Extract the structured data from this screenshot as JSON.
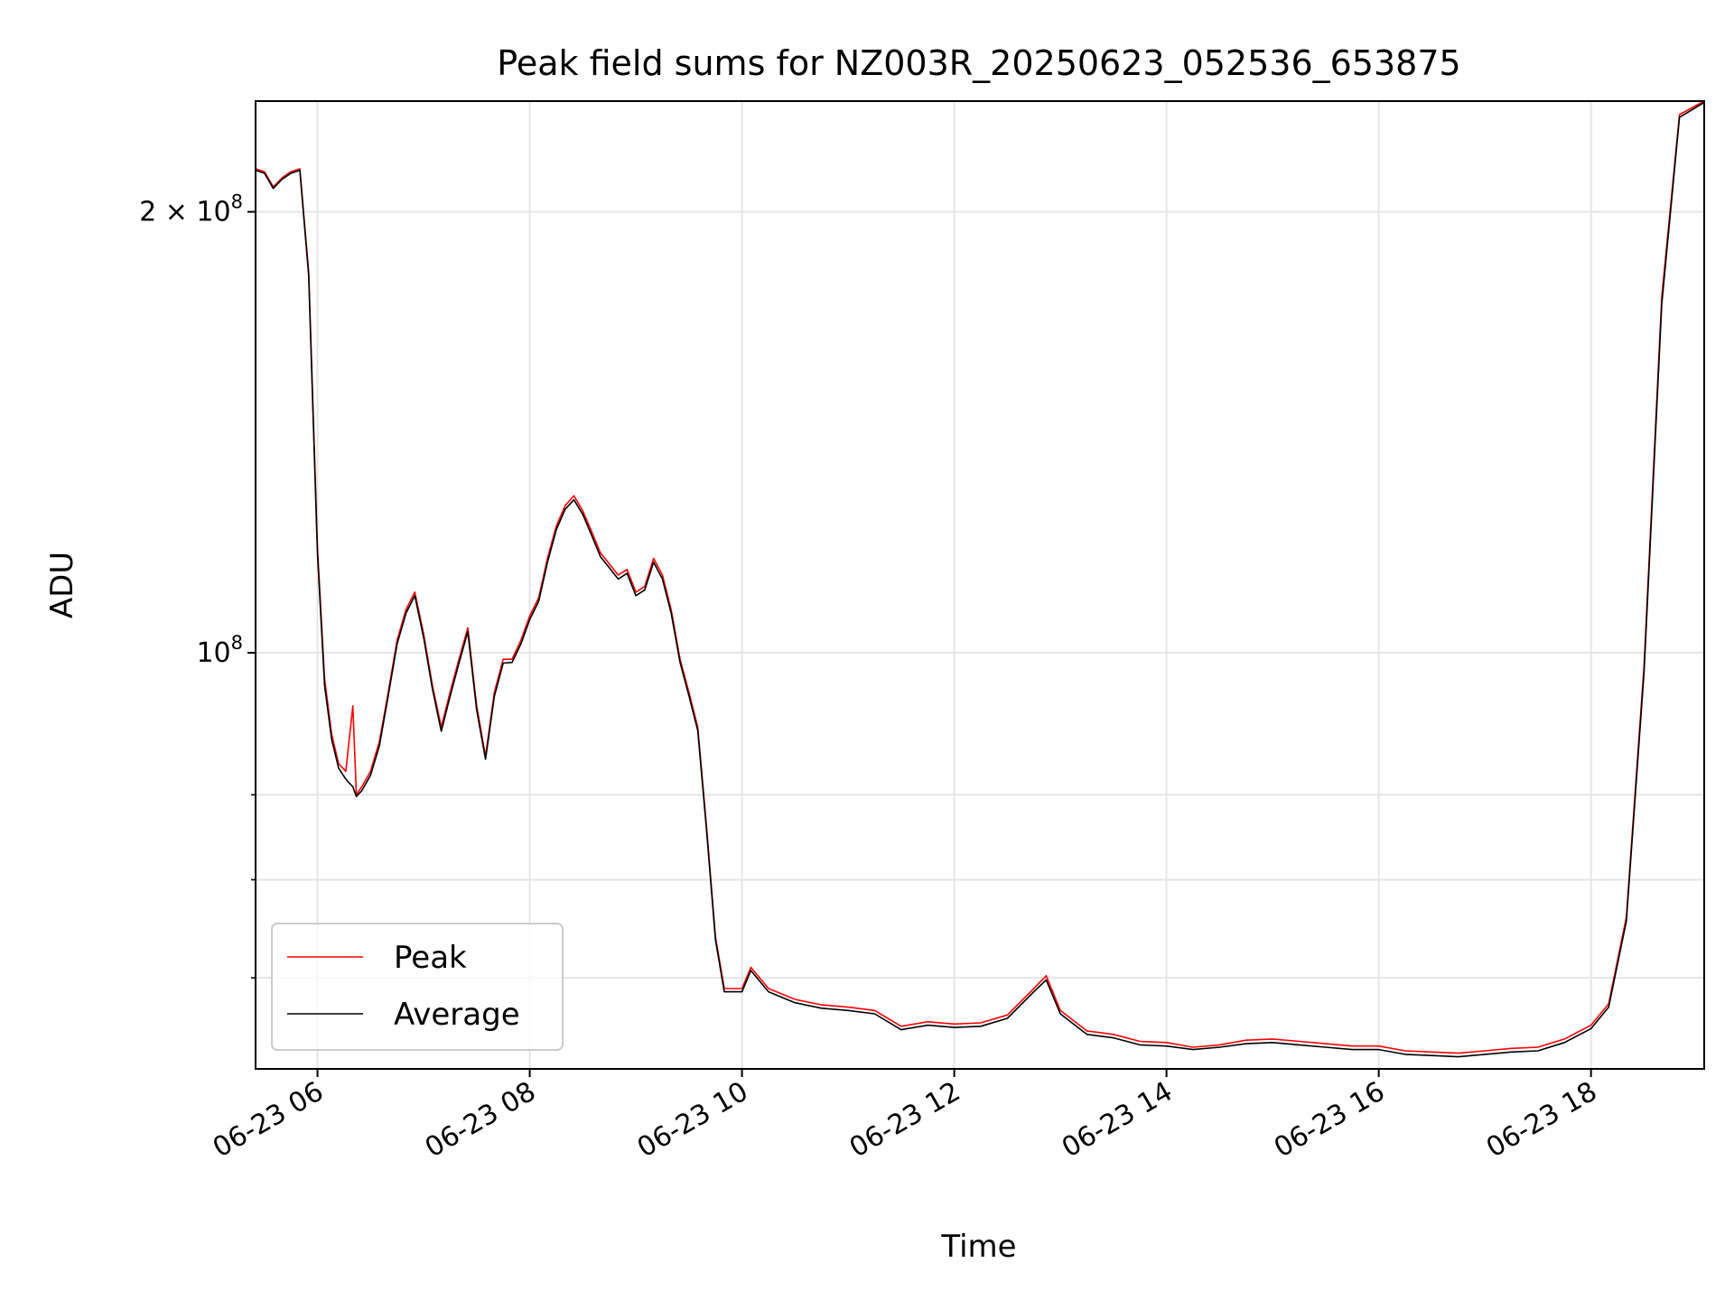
{
  "chart_data": {
    "type": "line",
    "title": "Peak field sums for NZ003R_20250623_052536_653875",
    "xlabel": "Time",
    "ylabel": "ADU",
    "x_ticks": [
      {
        "time": "2025-06-23T06:00",
        "label": "06-23 06"
      },
      {
        "time": "2025-06-23T08:00",
        "label": "06-23 08"
      },
      {
        "time": "2025-06-23T10:00",
        "label": "06-23 10"
      },
      {
        "time": "2025-06-23T12:00",
        "label": "06-23 12"
      },
      {
        "time": "2025-06-23T14:00",
        "label": "06-23 14"
      },
      {
        "time": "2025-06-23T16:00",
        "label": "06-23 16"
      },
      {
        "time": "2025-06-23T18:00",
        "label": "06-23 18"
      }
    ],
    "y_scale": "log",
    "y_ticks": [
      {
        "value": 200000000,
        "base": "2 × 10",
        "exp": "8"
      },
      {
        "value": 100000000,
        "base": "10",
        "exp": "8"
      }
    ],
    "xlim": [
      "2025-06-23T05:25",
      "2025-06-23T19:04"
    ],
    "ylim": [
      52000000,
      238000000
    ],
    "grid": true,
    "legend_position": "lower-left",
    "colors": {
      "peak": "#ff0000",
      "average": "#000000",
      "grid": "#e5e5e5"
    },
    "series": [
      {
        "name": "Peak",
        "color": "#ff0000",
        "points": [
          [
            "2025-06-23T05:25",
            214000000
          ],
          [
            "2025-06-23T05:30",
            213000000
          ],
          [
            "2025-06-23T05:35",
            208000000
          ],
          [
            "2025-06-23T05:40",
            211000000
          ],
          [
            "2025-06-23T05:45",
            213000000
          ],
          [
            "2025-06-23T05:50",
            214000000
          ],
          [
            "2025-06-23T05:55",
            182000000
          ],
          [
            "2025-06-23T06:00",
            118000000
          ],
          [
            "2025-06-23T06:04",
            96000000
          ],
          [
            "2025-06-23T06:08",
            88000000
          ],
          [
            "2025-06-23T06:12",
            84000000
          ],
          [
            "2025-06-23T06:16",
            83000000
          ],
          [
            "2025-06-23T06:20",
            92000000
          ],
          [
            "2025-06-23T06:22",
            80000000
          ],
          [
            "2025-06-23T06:25",
            81000000
          ],
          [
            "2025-06-23T06:30",
            83000000
          ],
          [
            "2025-06-23T06:35",
            87000000
          ],
          [
            "2025-06-23T06:40",
            94000000
          ],
          [
            "2025-06-23T06:45",
            102000000
          ],
          [
            "2025-06-23T06:50",
            107000000
          ],
          [
            "2025-06-23T06:55",
            110000000
          ],
          [
            "2025-06-23T07:00",
            103000000
          ],
          [
            "2025-06-23T07:05",
            95000000
          ],
          [
            "2025-06-23T07:10",
            89000000
          ],
          [
            "2025-06-23T07:15",
            94000000
          ],
          [
            "2025-06-23T07:20",
            99000000
          ],
          [
            "2025-06-23T07:25",
            104000000
          ],
          [
            "2025-06-23T07:30",
            92000000
          ],
          [
            "2025-06-23T07:35",
            85000000
          ],
          [
            "2025-06-23T07:40",
            94000000
          ],
          [
            "2025-06-23T07:45",
            99000000
          ],
          [
            "2025-06-23T07:50",
            99000000
          ],
          [
            "2025-06-23T07:55",
            102000000
          ],
          [
            "2025-06-23T08:00",
            106000000
          ],
          [
            "2025-06-23T08:05",
            109000000
          ],
          [
            "2025-06-23T08:10",
            116000000
          ],
          [
            "2025-06-23T08:15",
            122000000
          ],
          [
            "2025-06-23T08:20",
            126000000
          ],
          [
            "2025-06-23T08:25",
            128000000
          ],
          [
            "2025-06-23T08:30",
            125000000
          ],
          [
            "2025-06-23T08:35",
            121000000
          ],
          [
            "2025-06-23T08:40",
            117000000
          ],
          [
            "2025-06-23T08:45",
            115000000
          ],
          [
            "2025-06-23T08:50",
            113000000
          ],
          [
            "2025-06-23T08:55",
            114000000
          ],
          [
            "2025-06-23T09:00",
            110000000
          ],
          [
            "2025-06-23T09:05",
            111000000
          ],
          [
            "2025-06-23T09:10",
            116000000
          ],
          [
            "2025-06-23T09:15",
            113000000
          ],
          [
            "2025-06-23T09:20",
            107000000
          ],
          [
            "2025-06-23T09:25",
            99000000
          ],
          [
            "2025-06-23T09:30",
            94000000
          ],
          [
            "2025-06-23T09:35",
            89000000
          ],
          [
            "2025-06-23T09:40",
            76000000
          ],
          [
            "2025-06-23T09:45",
            64000000
          ],
          [
            "2025-06-23T09:50",
            59000000
          ],
          [
            "2025-06-23T10:00",
            59000000
          ],
          [
            "2025-06-23T10:05",
            61000000
          ],
          [
            "2025-06-23T10:15",
            59000000
          ],
          [
            "2025-06-23T10:30",
            58000000
          ],
          [
            "2025-06-23T10:45",
            57500000
          ],
          [
            "2025-06-23T11:00",
            57300000
          ],
          [
            "2025-06-23T11:15",
            57000000
          ],
          [
            "2025-06-23T11:30",
            55600000
          ],
          [
            "2025-06-23T11:45",
            56000000
          ],
          [
            "2025-06-23T12:00",
            55800000
          ],
          [
            "2025-06-23T12:15",
            55900000
          ],
          [
            "2025-06-23T12:30",
            56600000
          ],
          [
            "2025-06-23T12:45",
            59000000
          ],
          [
            "2025-06-23T12:52",
            60200000
          ],
          [
            "2025-06-23T13:00",
            57000000
          ],
          [
            "2025-06-23T13:15",
            55200000
          ],
          [
            "2025-06-23T13:30",
            54900000
          ],
          [
            "2025-06-23T13:45",
            54300000
          ],
          [
            "2025-06-23T14:00",
            54200000
          ],
          [
            "2025-06-23T14:15",
            53800000
          ],
          [
            "2025-06-23T14:30",
            54000000
          ],
          [
            "2025-06-23T14:45",
            54400000
          ],
          [
            "2025-06-23T15:00",
            54500000
          ],
          [
            "2025-06-23T15:15",
            54300000
          ],
          [
            "2025-06-23T15:30",
            54100000
          ],
          [
            "2025-06-23T15:45",
            53900000
          ],
          [
            "2025-06-23T16:00",
            53900000
          ],
          [
            "2025-06-23T16:15",
            53500000
          ],
          [
            "2025-06-23T16:30",
            53400000
          ],
          [
            "2025-06-23T16:45",
            53300000
          ],
          [
            "2025-06-23T17:00",
            53500000
          ],
          [
            "2025-06-23T17:15",
            53700000
          ],
          [
            "2025-06-23T17:30",
            53800000
          ],
          [
            "2025-06-23T17:45",
            54500000
          ],
          [
            "2025-06-23T18:00",
            55700000
          ],
          [
            "2025-06-23T18:10",
            57600000
          ],
          [
            "2025-06-23T18:20",
            66000000
          ],
          [
            "2025-06-23T18:30",
            98000000
          ],
          [
            "2025-06-23T18:40",
            175000000
          ],
          [
            "2025-06-23T18:50",
            233000000
          ],
          [
            "2025-06-23T19:04",
            238000000
          ]
        ]
      },
      {
        "name": "Average",
        "color": "#000000",
        "points": [
          [
            "2025-06-23T05:25",
            213500000
          ],
          [
            "2025-06-23T05:30",
            212500000
          ],
          [
            "2025-06-23T05:35",
            207500000
          ],
          [
            "2025-06-23T05:40",
            210500000
          ],
          [
            "2025-06-23T05:45",
            212500000
          ],
          [
            "2025-06-23T05:50",
            213500000
          ],
          [
            "2025-06-23T05:55",
            181000000
          ],
          [
            "2025-06-23T06:00",
            117000000
          ],
          [
            "2025-06-23T06:04",
            95000000
          ],
          [
            "2025-06-23T06:08",
            87300000
          ],
          [
            "2025-06-23T06:12",
            83400000
          ],
          [
            "2025-06-23T06:16",
            82000000
          ],
          [
            "2025-06-23T06:20",
            81000000
          ],
          [
            "2025-06-23T06:22",
            79800000
          ],
          [
            "2025-06-23T06:25",
            80500000
          ],
          [
            "2025-06-23T06:30",
            82500000
          ],
          [
            "2025-06-23T06:35",
            86400000
          ],
          [
            "2025-06-23T06:40",
            93500000
          ],
          [
            "2025-06-23T06:45",
            101400000
          ],
          [
            "2025-06-23T06:50",
            106400000
          ],
          [
            "2025-06-23T06:55",
            109400000
          ],
          [
            "2025-06-23T07:00",
            102400000
          ],
          [
            "2025-06-23T07:05",
            94500000
          ],
          [
            "2025-06-23T07:10",
            88400000
          ],
          [
            "2025-06-23T07:15",
            93400000
          ],
          [
            "2025-06-23T07:20",
            98400000
          ],
          [
            "2025-06-23T07:25",
            103400000
          ],
          [
            "2025-06-23T07:30",
            91400000
          ],
          [
            "2025-06-23T07:35",
            84600000
          ],
          [
            "2025-06-23T07:40",
            93400000
          ],
          [
            "2025-06-23T07:45",
            98400000
          ],
          [
            "2025-06-23T07:50",
            98500000
          ],
          [
            "2025-06-23T07:55",
            101400000
          ],
          [
            "2025-06-23T08:00",
            105400000
          ],
          [
            "2025-06-23T08:05",
            108400000
          ],
          [
            "2025-06-23T08:10",
            115300000
          ],
          [
            "2025-06-23T08:15",
            121300000
          ],
          [
            "2025-06-23T08:20",
            125300000
          ],
          [
            "2025-06-23T08:25",
            127200000
          ],
          [
            "2025-06-23T08:30",
            124300000
          ],
          [
            "2025-06-23T08:35",
            120300000
          ],
          [
            "2025-06-23T08:40",
            116300000
          ],
          [
            "2025-06-23T08:45",
            114300000
          ],
          [
            "2025-06-23T08:50",
            112300000
          ],
          [
            "2025-06-23T08:55",
            113300000
          ],
          [
            "2025-06-23T09:00",
            109400000
          ],
          [
            "2025-06-23T09:05",
            110400000
          ],
          [
            "2025-06-23T09:10",
            115300000
          ],
          [
            "2025-06-23T09:15",
            112300000
          ],
          [
            "2025-06-23T09:20",
            106400000
          ],
          [
            "2025-06-23T09:25",
            98500000
          ],
          [
            "2025-06-23T09:30",
            93500000
          ],
          [
            "2025-06-23T09:35",
            88500000
          ],
          [
            "2025-06-23T09:40",
            75600000
          ],
          [
            "2025-06-23T09:45",
            63700000
          ],
          [
            "2025-06-23T09:50",
            58700000
          ],
          [
            "2025-06-23T10:00",
            58700000
          ],
          [
            "2025-06-23T10:05",
            60700000
          ],
          [
            "2025-06-23T10:15",
            58700000
          ],
          [
            "2025-06-23T10:30",
            57700000
          ],
          [
            "2025-06-23T10:45",
            57200000
          ],
          [
            "2025-06-23T11:00",
            57000000
          ],
          [
            "2025-06-23T11:15",
            56700000
          ],
          [
            "2025-06-23T11:30",
            55300000
          ],
          [
            "2025-06-23T11:45",
            55700000
          ],
          [
            "2025-06-23T12:00",
            55500000
          ],
          [
            "2025-06-23T12:15",
            55600000
          ],
          [
            "2025-06-23T12:30",
            56300000
          ],
          [
            "2025-06-23T12:45",
            58700000
          ],
          [
            "2025-06-23T12:52",
            59800000
          ],
          [
            "2025-06-23T13:00",
            56700000
          ],
          [
            "2025-06-23T13:15",
            54900000
          ],
          [
            "2025-06-23T13:30",
            54600000
          ],
          [
            "2025-06-23T13:45",
            54000000
          ],
          [
            "2025-06-23T14:00",
            53900000
          ],
          [
            "2025-06-23T14:15",
            53600000
          ],
          [
            "2025-06-23T14:30",
            53800000
          ],
          [
            "2025-06-23T14:45",
            54100000
          ],
          [
            "2025-06-23T15:00",
            54200000
          ],
          [
            "2025-06-23T15:15",
            54000000
          ],
          [
            "2025-06-23T15:30",
            53800000
          ],
          [
            "2025-06-23T15:45",
            53600000
          ],
          [
            "2025-06-23T16:00",
            53600000
          ],
          [
            "2025-06-23T16:15",
            53200000
          ],
          [
            "2025-06-23T16:30",
            53100000
          ],
          [
            "2025-06-23T16:45",
            53000000
          ],
          [
            "2025-06-23T17:00",
            53200000
          ],
          [
            "2025-06-23T17:15",
            53400000
          ],
          [
            "2025-06-23T17:30",
            53500000
          ],
          [
            "2025-06-23T17:45",
            54200000
          ],
          [
            "2025-06-23T18:00",
            55400000
          ],
          [
            "2025-06-23T18:10",
            57300000
          ],
          [
            "2025-06-23T18:20",
            65600000
          ],
          [
            "2025-06-23T18:30",
            97000000
          ],
          [
            "2025-06-23T18:40",
            173000000
          ],
          [
            "2025-06-23T18:50",
            232000000
          ],
          [
            "2025-06-23T19:04",
            237500000
          ]
        ]
      }
    ]
  }
}
